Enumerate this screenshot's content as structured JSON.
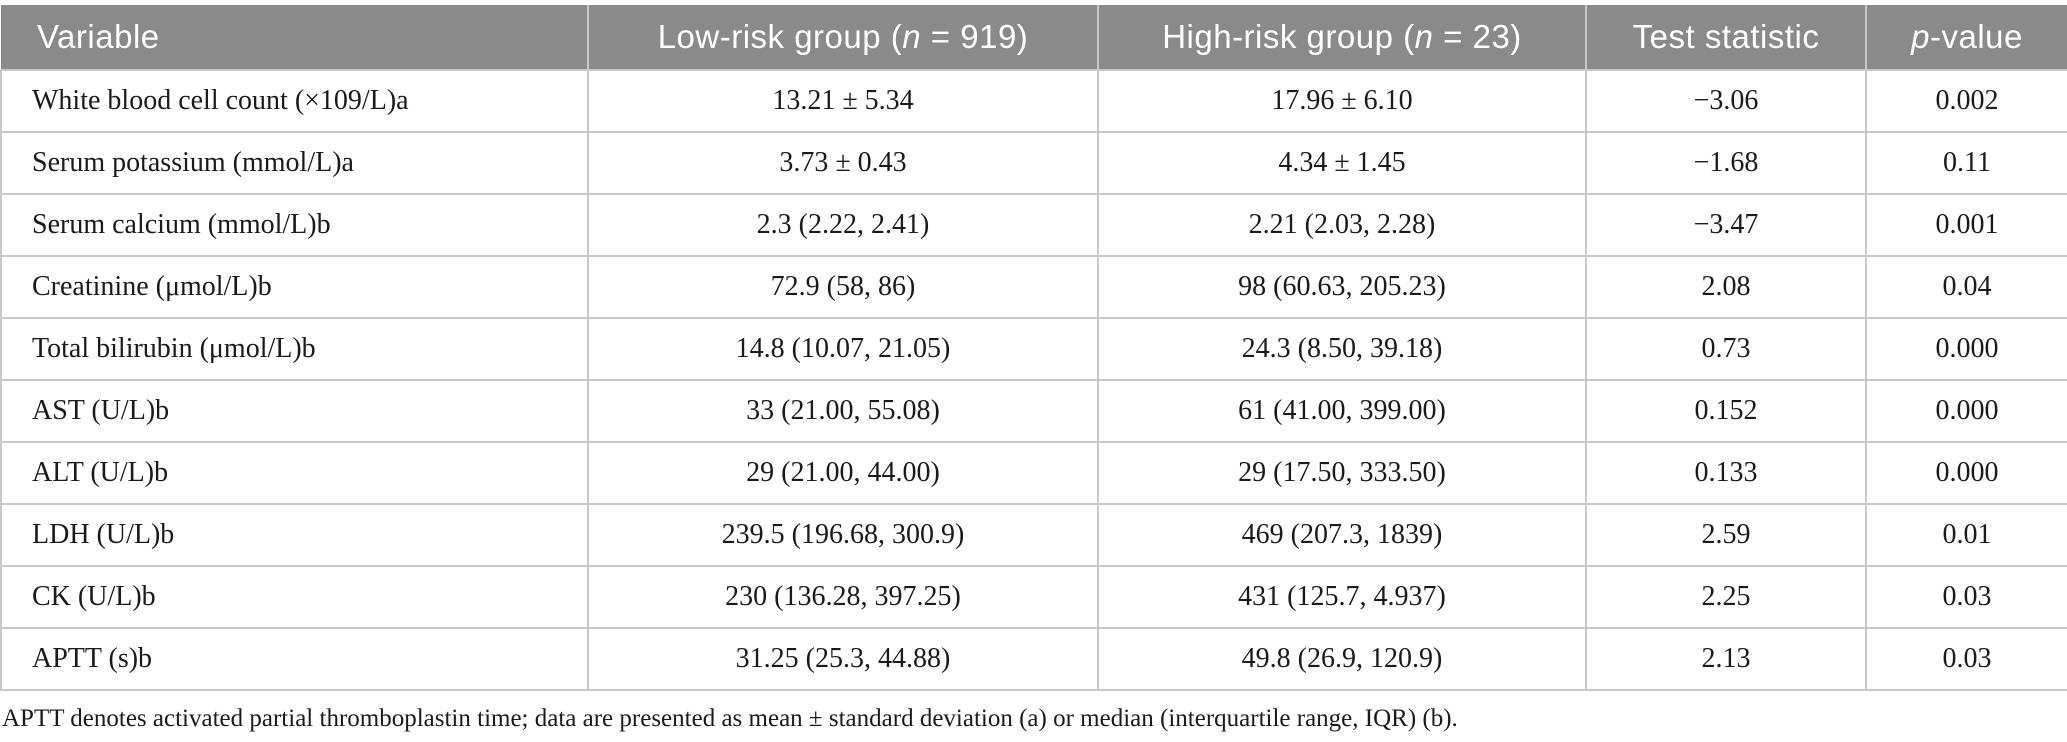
{
  "table": {
    "header": {
      "variable": "Variable",
      "low_risk": {
        "prefix": "Low-risk group (",
        "italic": "n",
        "suffix": " = 919)"
      },
      "high_risk": {
        "prefix": "High-risk group (",
        "italic": "n",
        "suffix": " = 23)"
      },
      "test_statistic": "Test statistic",
      "p_value": {
        "italic": "p",
        "suffix": "-value"
      }
    },
    "rows": [
      {
        "variable": "White blood cell count (×109/L)a",
        "low_risk": "13.21 ± 5.34",
        "high_risk": "17.96 ± 6.10",
        "test_statistic": "−3.06",
        "p_value": "0.002"
      },
      {
        "variable": "Serum potassium (mmol/L)a",
        "low_risk": "3.73 ± 0.43",
        "high_risk": "4.34 ± 1.45",
        "test_statistic": "−1.68",
        "p_value": "0.11"
      },
      {
        "variable": "Serum calcium (mmol/L)b",
        "low_risk": "2.3 (2.22, 2.41)",
        "high_risk": "2.21 (2.03, 2.28)",
        "test_statistic": "−3.47",
        "p_value": "0.001"
      },
      {
        "variable": "Creatinine (μmol/L)b",
        "low_risk": "72.9 (58, 86)",
        "high_risk": "98 (60.63, 205.23)",
        "test_statistic": "2.08",
        "p_value": "0.04"
      },
      {
        "variable": "Total bilirubin (μmol/L)b",
        "low_risk": "14.8 (10.07, 21.05)",
        "high_risk": "24.3 (8.50, 39.18)",
        "test_statistic": "0.73",
        "p_value": "0.000"
      },
      {
        "variable": "AST (U/L)b",
        "low_risk": "33 (21.00, 55.08)",
        "high_risk": "61 (41.00, 399.00)",
        "test_statistic": "0.152",
        "p_value": "0.000"
      },
      {
        "variable": "ALT (U/L)b",
        "low_risk": "29 (21.00, 44.00)",
        "high_risk": "29 (17.50, 333.50)",
        "test_statistic": "0.133",
        "p_value": "0.000"
      },
      {
        "variable": "LDH (U/L)b",
        "low_risk": "239.5 (196.68, 300.9)",
        "high_risk": "469 (207.3, 1839)",
        "test_statistic": "2.59",
        "p_value": "0.01"
      },
      {
        "variable": "CK (U/L)b",
        "low_risk": "230 (136.28, 397.25)",
        "high_risk": "431 (125.7, 4.937)",
        "test_statistic": "2.25",
        "p_value": "0.03"
      },
      {
        "variable": "APTT (s)b",
        "low_risk": "31.25 (25.3, 44.88)",
        "high_risk": "49.8 (26.9, 120.9)",
        "test_statistic": "2.13",
        "p_value": "0.03"
      }
    ],
    "footnote": "APTT denotes activated partial thromboplastin time; data are presented as mean ± standard deviation (a) or median (interquartile range, IQR) (b)."
  },
  "colors": {
    "header_bg": "#8a8a8a",
    "header_text": "#ffffff",
    "border": "#c8c8c8",
    "body_text": "#1a1a1a"
  }
}
